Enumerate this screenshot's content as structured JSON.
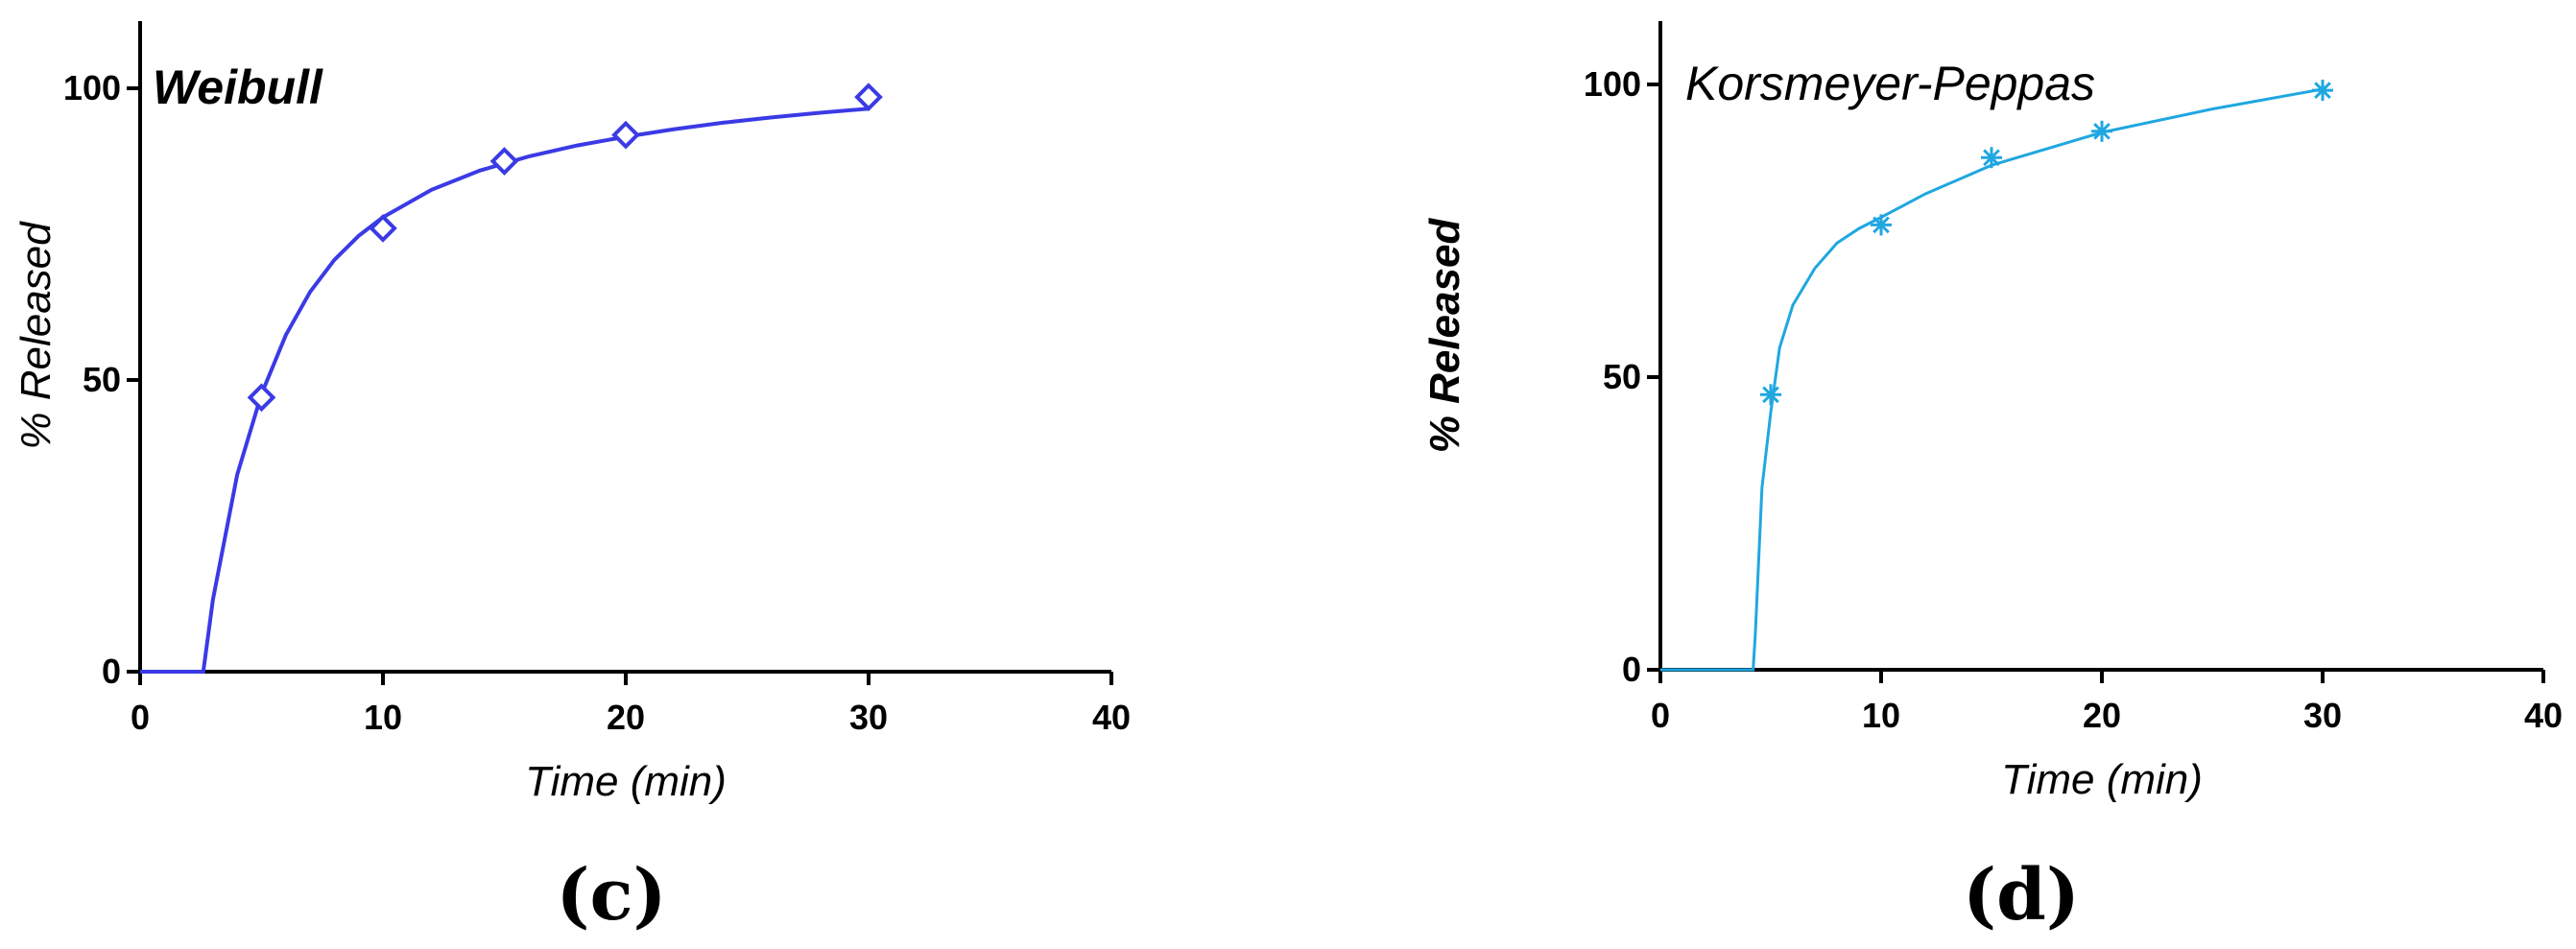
{
  "chart_data": [
    {
      "type": "scatter",
      "panel_label": "(c)",
      "title": "Weibull",
      "xlabel": "Time (min)",
      "ylabel": "% Released",
      "xlim": [
        0,
        40
      ],
      "ylim": [
        0,
        110
      ],
      "xticks": [
        0,
        10,
        20,
        30,
        40
      ],
      "yticks": [
        0,
        50,
        100
      ],
      "grid": false,
      "legend": "none",
      "marker": "diamond",
      "color": "#3a3ae6",
      "x": [
        5,
        10,
        15,
        20,
        30
      ],
      "y": [
        47,
        76,
        87.5,
        92,
        98.5
      ],
      "fit": {
        "model": "Weibull",
        "x": [
          0,
          2.6,
          3,
          4,
          5,
          6,
          7,
          8,
          9,
          10,
          12,
          14,
          16,
          18,
          20,
          22,
          24,
          26,
          28,
          30
        ],
        "y": [
          0,
          0,
          12.4,
          33.8,
          47.6,
          57.7,
          65.1,
          70.6,
          74.7,
          77.9,
          82.6,
          85.9,
          88.3,
          90.2,
          91.7,
          93.0,
          94.1,
          95.0,
          95.8,
          96.5
        ]
      }
    },
    {
      "type": "scatter",
      "panel_label": "(d)",
      "title": "Korsmeyer-Peppas",
      "xlabel": "Time (min)",
      "ylabel": "% Released",
      "xlim": [
        0,
        40
      ],
      "ylim": [
        0,
        110
      ],
      "xticks": [
        0,
        10,
        20,
        30,
        40
      ],
      "yticks": [
        0,
        50,
        100
      ],
      "grid": false,
      "legend": "none",
      "marker": "asterisk",
      "color": "#1fa7e0",
      "x": [
        5,
        10,
        15,
        20,
        30
      ],
      "y": [
        47,
        76,
        87.5,
        92,
        99
      ],
      "fit": {
        "model": "Korsmeyer-Peppas",
        "x": [
          0,
          4.2,
          4.3,
          4.6,
          5.0,
          5.4,
          6,
          7,
          8,
          9,
          10,
          12,
          15,
          20,
          25,
          30
        ],
        "y": [
          0,
          0,
          6,
          31,
          44,
          55,
          62.3,
          68.6,
          72.9,
          75.4,
          77.3,
          81.3,
          86.2,
          91.8,
          95.8,
          99.2
        ]
      }
    }
  ]
}
